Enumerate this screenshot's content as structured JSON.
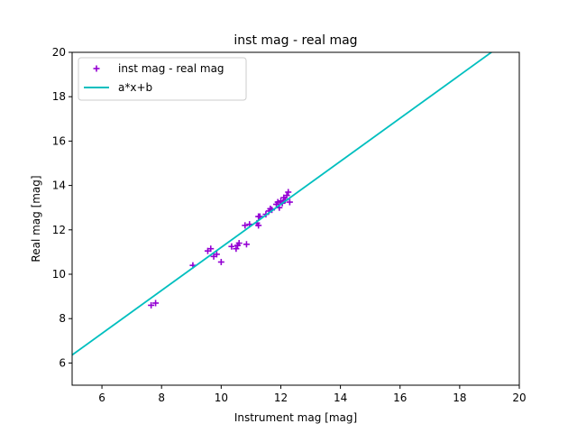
{
  "chart_data": {
    "type": "scatter",
    "title": "inst mag - real mag",
    "xlabel": "Instrument mag [mag]",
    "ylabel": "Real mag [mag]",
    "xlim": [
      5,
      20
    ],
    "ylim": [
      5,
      20
    ],
    "xticks": [
      6,
      8,
      10,
      12,
      14,
      16,
      18,
      20
    ],
    "yticks": [
      6,
      8,
      10,
      12,
      14,
      16,
      18,
      20
    ],
    "grid": false,
    "legend_position": "top-left",
    "series": [
      {
        "name": "inst mag - real mag",
        "kind": "scatter",
        "marker": "plus",
        "color": "#9400d3",
        "points": [
          [
            7.65,
            8.6
          ],
          [
            7.8,
            8.7
          ],
          [
            9.05,
            10.4
          ],
          [
            9.55,
            11.05
          ],
          [
            9.65,
            11.15
          ],
          [
            9.75,
            10.8
          ],
          [
            9.85,
            10.9
          ],
          [
            10.0,
            10.55
          ],
          [
            10.35,
            11.25
          ],
          [
            10.5,
            11.15
          ],
          [
            10.55,
            11.3
          ],
          [
            10.6,
            11.4
          ],
          [
            10.85,
            11.35
          ],
          [
            10.8,
            12.2
          ],
          [
            10.95,
            12.25
          ],
          [
            11.2,
            12.3
          ],
          [
            11.25,
            12.6
          ],
          [
            11.3,
            12.6
          ],
          [
            11.25,
            12.2
          ],
          [
            11.5,
            12.7
          ],
          [
            11.6,
            12.85
          ],
          [
            11.65,
            12.95
          ],
          [
            11.7,
            12.9
          ],
          [
            11.85,
            13.15
          ],
          [
            11.9,
            13.25
          ],
          [
            11.95,
            13.0
          ],
          [
            12.0,
            13.3
          ],
          [
            12.05,
            13.2
          ],
          [
            12.1,
            13.45
          ],
          [
            12.15,
            13.35
          ],
          [
            12.2,
            13.55
          ],
          [
            12.25,
            13.7
          ],
          [
            12.3,
            13.25
          ]
        ]
      },
      {
        "name": "a*x+b",
        "kind": "line",
        "color": "#00bfbf",
        "slope": 0.97,
        "intercept": 1.51
      }
    ]
  }
}
